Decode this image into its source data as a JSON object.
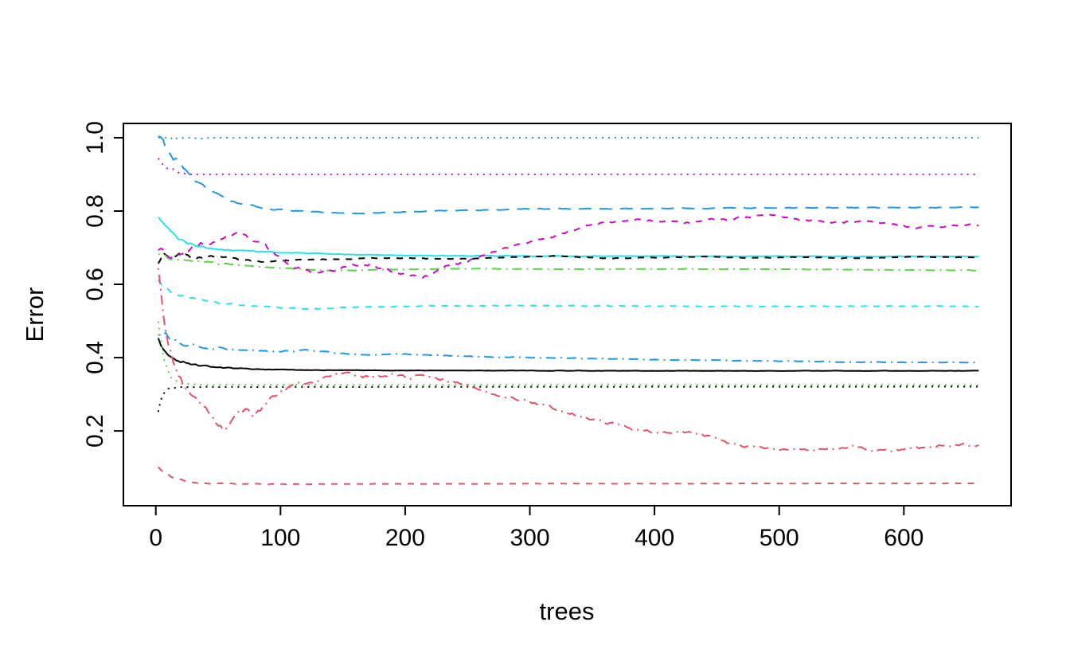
{
  "page": {
    "background": "#ffffff"
  },
  "chart_data": {
    "type": "line",
    "title": "",
    "xlabel": "trees",
    "ylabel": "Error",
    "xlim": [
      -26,
      686
    ],
    "ylim": [
      -0.004,
      1.039
    ],
    "grid": false,
    "legend": "none",
    "xticks": [
      0,
      100,
      200,
      300,
      400,
      500,
      600
    ],
    "xtick_labels": [
      "0",
      "100",
      "200",
      "300",
      "400",
      "500",
      "600"
    ],
    "yticks": [
      0.2,
      0.4,
      0.6,
      0.8,
      1.0
    ],
    "ytick_labels": [
      "0.2",
      "0.4",
      "0.6",
      "0.8",
      "1.0"
    ],
    "palette": {
      "black": "#000000",
      "red": "#DF536B",
      "green": "#61D04F",
      "blue": "#2297E6",
      "cyan": "#28E2E5",
      "magenta": "#CD0BBC"
    },
    "series": [
      {
        "name": "blue-dotted-flat-1.0",
        "color": "#2297E6",
        "linetype": "dotted",
        "clamp_max": 1.0,
        "noise": {
          "start": 0.045,
          "end": 0.0003,
          "tau": 18,
          "seed": 11
        },
        "points": [
          [
            2,
            1.0
          ],
          [
            660,
            1.0
          ]
        ]
      },
      {
        "name": "magenta-dotted-flat-0.9",
        "color": "#CD0BBC",
        "linetype": "dotted",
        "noise": {
          "start": 0.02,
          "end": 0.0003,
          "tau": 10,
          "seed": 21
        },
        "points": [
          [
            2,
            0.945
          ],
          [
            8,
            0.92
          ],
          [
            18,
            0.905
          ],
          [
            30,
            0.9
          ],
          [
            660,
            0.9
          ]
        ]
      },
      {
        "name": "blue-longdash-0.81",
        "color": "#2297E6",
        "linetype": "longdash",
        "noise": {
          "start": 0.025,
          "end": 0.002,
          "tau": 30,
          "seed": 31
        },
        "points": [
          [
            2,
            1.0
          ],
          [
            8,
            0.975
          ],
          [
            15,
            0.945
          ],
          [
            25,
            0.905
          ],
          [
            35,
            0.875
          ],
          [
            45,
            0.85
          ],
          [
            55,
            0.835
          ],
          [
            70,
            0.818
          ],
          [
            90,
            0.806
          ],
          [
            120,
            0.798
          ],
          [
            160,
            0.793
          ],
          [
            220,
            0.8
          ],
          [
            300,
            0.806
          ],
          [
            400,
            0.807
          ],
          [
            500,
            0.809
          ],
          [
            660,
            0.81
          ]
        ]
      },
      {
        "name": "cyan-solid-0.68",
        "color": "#28E2E5",
        "linetype": "solid",
        "noise": {
          "start": 0.012,
          "end": 0.0015,
          "tau": 40,
          "seed": 41
        },
        "points": [
          [
            2,
            0.78
          ],
          [
            8,
            0.757
          ],
          [
            15,
            0.732
          ],
          [
            25,
            0.712
          ],
          [
            40,
            0.7
          ],
          [
            60,
            0.694
          ],
          [
            90,
            0.689
          ],
          [
            120,
            0.685
          ],
          [
            160,
            0.681
          ],
          [
            220,
            0.678
          ],
          [
            320,
            0.677
          ],
          [
            660,
            0.676
          ]
        ]
      },
      {
        "name": "black-dashed-0.67",
        "color": "#000000",
        "linetype": "dashed",
        "noise": {
          "start": 0.01,
          "end": 0.0015,
          "tau": 60,
          "seed": 51
        },
        "points": [
          [
            2,
            0.66
          ],
          [
            6,
            0.69
          ],
          [
            12,
            0.676
          ],
          [
            20,
            0.682
          ],
          [
            30,
            0.672
          ],
          [
            50,
            0.676
          ],
          [
            70,
            0.667
          ],
          [
            90,
            0.661
          ],
          [
            110,
            0.666
          ],
          [
            140,
            0.669
          ],
          [
            170,
            0.671
          ],
          [
            200,
            0.672
          ],
          [
            240,
            0.669
          ],
          [
            280,
            0.673
          ],
          [
            320,
            0.678
          ],
          [
            360,
            0.671
          ],
          [
            400,
            0.673
          ],
          [
            440,
            0.676
          ],
          [
            480,
            0.672
          ],
          [
            520,
            0.675
          ],
          [
            560,
            0.671
          ],
          [
            600,
            0.675
          ],
          [
            660,
            0.674
          ]
        ]
      },
      {
        "name": "green-dotdash-0.64",
        "color": "#61D04F",
        "linetype": "dotdash",
        "noise": {
          "start": 0.008,
          "end": 0.0012,
          "tau": 50,
          "seed": 61
        },
        "points": [
          [
            2,
            0.682
          ],
          [
            10,
            0.672
          ],
          [
            25,
            0.664
          ],
          [
            50,
            0.657
          ],
          [
            80,
            0.649
          ],
          [
            110,
            0.642
          ],
          [
            140,
            0.637
          ],
          [
            180,
            0.64
          ],
          [
            240,
            0.643
          ],
          [
            320,
            0.641
          ],
          [
            420,
            0.642
          ],
          [
            520,
            0.641
          ],
          [
            600,
            0.639
          ],
          [
            660,
            0.638
          ]
        ]
      },
      {
        "name": "cyan-dashed-0.54",
        "color": "#28E2E5",
        "linetype": "dashed",
        "noise": {
          "start": 0.01,
          "end": 0.0015,
          "tau": 50,
          "seed": 71
        },
        "points": [
          [
            2,
            0.61
          ],
          [
            8,
            0.59
          ],
          [
            15,
            0.575
          ],
          [
            25,
            0.564
          ],
          [
            40,
            0.554
          ],
          [
            60,
            0.547
          ],
          [
            80,
            0.541
          ],
          [
            100,
            0.536
          ],
          [
            125,
            0.533
          ],
          [
            155,
            0.537
          ],
          [
            200,
            0.54
          ],
          [
            280,
            0.542
          ],
          [
            420,
            0.54
          ],
          [
            660,
            0.54
          ]
        ]
      },
      {
        "name": "blue-dotdash-0.39",
        "color": "#2297E6",
        "linetype": "dotdash",
        "noise": {
          "start": 0.012,
          "end": 0.0015,
          "tau": 60,
          "seed": 81
        },
        "points": [
          [
            2,
            0.458
          ],
          [
            8,
            0.468
          ],
          [
            15,
            0.444
          ],
          [
            25,
            0.436
          ],
          [
            40,
            0.429
          ],
          [
            60,
            0.424
          ],
          [
            80,
            0.418
          ],
          [
            100,
            0.416
          ],
          [
            120,
            0.421
          ],
          [
            145,
            0.412
          ],
          [
            170,
            0.408
          ],
          [
            200,
            0.41
          ],
          [
            235,
            0.405
          ],
          [
            270,
            0.402
          ],
          [
            310,
            0.4
          ],
          [
            360,
            0.397
          ],
          [
            410,
            0.394
          ],
          [
            460,
            0.392
          ],
          [
            510,
            0.39
          ],
          [
            560,
            0.388
          ],
          [
            610,
            0.387
          ],
          [
            660,
            0.387
          ]
        ]
      },
      {
        "name": "black-solid-oob-0.36",
        "color": "#000000",
        "linetype": "solid",
        "noise": {
          "start": 0.008,
          "end": 0.0008,
          "tau": 40,
          "seed": 91
        },
        "points": [
          [
            2,
            0.452
          ],
          [
            6,
            0.421
          ],
          [
            12,
            0.401
          ],
          [
            20,
            0.389
          ],
          [
            35,
            0.379
          ],
          [
            55,
            0.372
          ],
          [
            80,
            0.368
          ],
          [
            120,
            0.366
          ],
          [
            200,
            0.365
          ],
          [
            400,
            0.364
          ],
          [
            660,
            0.364
          ]
        ]
      },
      {
        "name": "green-dotted-0.325",
        "color": "#61D04F",
        "linetype": "dotted",
        "noise": {
          "start": 0.004,
          "end": 0.0005,
          "tau": 30,
          "seed": 101
        },
        "points": [
          [
            2,
            0.5
          ],
          [
            6,
            0.4
          ],
          [
            12,
            0.345
          ],
          [
            20,
            0.329
          ],
          [
            40,
            0.326
          ],
          [
            660,
            0.325
          ]
        ]
      },
      {
        "name": "black-dotted-0.32",
        "color": "#000000",
        "linetype": "dotted",
        "noise": {
          "start": 0.004,
          "end": 0.0005,
          "tau": 30,
          "seed": 111
        },
        "points": [
          [
            2,
            0.25
          ],
          [
            5,
            0.298
          ],
          [
            10,
            0.314
          ],
          [
            20,
            0.32
          ],
          [
            660,
            0.321
          ]
        ]
      },
      {
        "name": "magenta-dashed-wavy-0.76",
        "color": "#CD0BBC",
        "linetype": "dashed",
        "noise": {
          "start": 0.015,
          "end": 0.006,
          "tau": 100,
          "seed": 121
        },
        "points": [
          [
            2,
            0.7
          ],
          [
            10,
            0.678
          ],
          [
            20,
            0.69
          ],
          [
            30,
            0.7
          ],
          [
            45,
            0.718
          ],
          [
            60,
            0.73
          ],
          [
            70,
            0.742
          ],
          [
            80,
            0.72
          ],
          [
            90,
            0.698
          ],
          [
            100,
            0.668
          ],
          [
            110,
            0.648
          ],
          [
            120,
            0.638
          ],
          [
            130,
            0.63
          ],
          [
            145,
            0.641
          ],
          [
            160,
            0.652
          ],
          [
            172,
            0.655
          ],
          [
            185,
            0.64
          ],
          [
            200,
            0.627
          ],
          [
            212,
            0.617
          ],
          [
            222,
            0.63
          ],
          [
            232,
            0.648
          ],
          [
            245,
            0.658
          ],
          [
            260,
            0.676
          ],
          [
            280,
            0.698
          ],
          [
            300,
            0.718
          ],
          [
            320,
            0.731
          ],
          [
            340,
            0.754
          ],
          [
            360,
            0.768
          ],
          [
            380,
            0.774
          ],
          [
            400,
            0.775
          ],
          [
            420,
            0.769
          ],
          [
            440,
            0.774
          ],
          [
            460,
            0.776
          ],
          [
            480,
            0.786
          ],
          [
            495,
            0.79
          ],
          [
            510,
            0.778
          ],
          [
            530,
            0.773
          ],
          [
            550,
            0.769
          ],
          [
            570,
            0.772
          ],
          [
            590,
            0.763
          ],
          [
            610,
            0.755
          ],
          [
            630,
            0.757
          ],
          [
            645,
            0.762
          ],
          [
            660,
            0.76
          ]
        ]
      },
      {
        "name": "red-dotdash-declining-0.16",
        "color": "#DF536B",
        "linetype": "dotdash",
        "noise": {
          "start": 0.02,
          "end": 0.007,
          "tau": 60,
          "seed": 131
        },
        "points": [
          [
            2,
            0.65
          ],
          [
            4,
            0.58
          ],
          [
            6,
            0.52
          ],
          [
            9,
            0.46
          ],
          [
            12,
            0.415
          ],
          [
            16,
            0.375
          ],
          [
            20,
            0.345
          ],
          [
            25,
            0.31
          ],
          [
            30,
            0.292
          ],
          [
            36,
            0.278
          ],
          [
            42,
            0.258
          ],
          [
            48,
            0.228
          ],
          [
            54,
            0.208
          ],
          [
            60,
            0.222
          ],
          [
            66,
            0.248
          ],
          [
            72,
            0.258
          ],
          [
            78,
            0.242
          ],
          [
            85,
            0.262
          ],
          [
            92,
            0.288
          ],
          [
            100,
            0.308
          ],
          [
            108,
            0.322
          ],
          [
            116,
            0.332
          ],
          [
            124,
            0.328
          ],
          [
            132,
            0.34
          ],
          [
            142,
            0.352
          ],
          [
            152,
            0.362
          ],
          [
            162,
            0.352
          ],
          [
            172,
            0.345
          ],
          [
            182,
            0.35
          ],
          [
            192,
            0.355
          ],
          [
            202,
            0.346
          ],
          [
            212,
            0.35
          ],
          [
            222,
            0.346
          ],
          [
            232,
            0.34
          ],
          [
            242,
            0.332
          ],
          [
            252,
            0.318
          ],
          [
            262,
            0.306
          ],
          [
            272,
            0.3
          ],
          [
            282,
            0.295
          ],
          [
            292,
            0.286
          ],
          [
            302,
            0.279
          ],
          [
            312,
            0.269
          ],
          [
            322,
            0.259
          ],
          [
            332,
            0.249
          ],
          [
            342,
            0.24
          ],
          [
            352,
            0.23
          ],
          [
            362,
            0.221
          ],
          [
            372,
            0.215
          ],
          [
            382,
            0.206
          ],
          [
            392,
            0.2
          ],
          [
            407,
            0.195
          ],
          [
            422,
            0.2
          ],
          [
            437,
            0.19
          ],
          [
            452,
            0.175
          ],
          [
            467,
            0.161
          ],
          [
            482,
            0.155
          ],
          [
            497,
            0.152
          ],
          [
            512,
            0.15
          ],
          [
            527,
            0.148
          ],
          [
            542,
            0.151
          ],
          [
            557,
            0.158
          ],
          [
            572,
            0.151
          ],
          [
            587,
            0.145
          ],
          [
            602,
            0.15
          ],
          [
            617,
            0.155
          ],
          [
            632,
            0.161
          ],
          [
            647,
            0.166
          ],
          [
            660,
            0.161
          ]
        ]
      },
      {
        "name": "red-dashed-flat-0.055",
        "color": "#DF536B",
        "linetype": "dashed",
        "noise": {
          "start": 0.006,
          "end": 0.0008,
          "tau": 40,
          "seed": 141
        },
        "points": [
          [
            2,
            0.1
          ],
          [
            8,
            0.084
          ],
          [
            15,
            0.07
          ],
          [
            25,
            0.062
          ],
          [
            40,
            0.058
          ],
          [
            60,
            0.056
          ],
          [
            100,
            0.055
          ],
          [
            300,
            0.056
          ],
          [
            660,
            0.057
          ]
        ]
      }
    ]
  }
}
